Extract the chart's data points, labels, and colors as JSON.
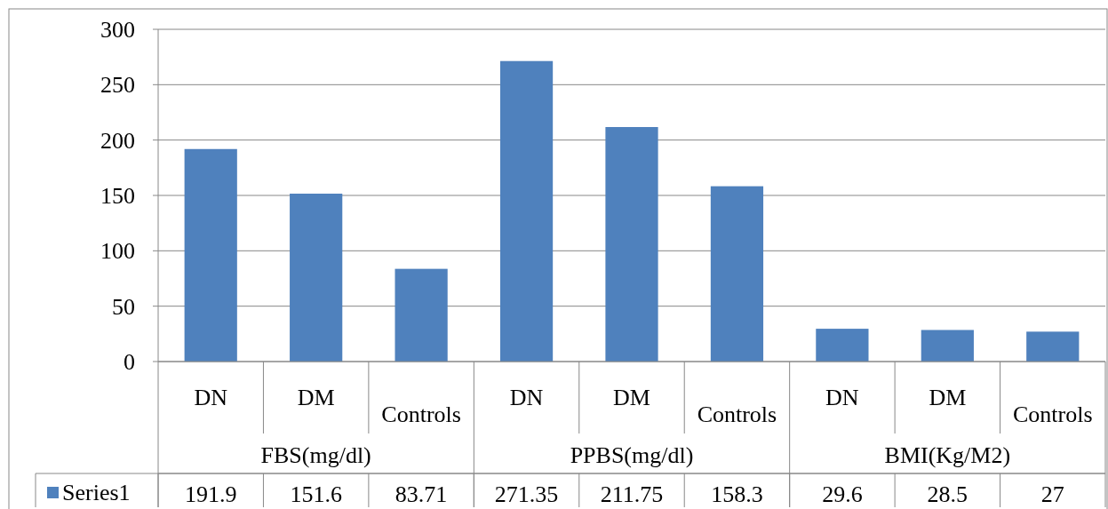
{
  "chart_data": {
    "type": "bar",
    "categories": [
      "DN",
      "DM",
      "Controls",
      "DN",
      "DM",
      "Controls",
      "DN",
      "DM",
      "Controls"
    ],
    "annotations": [
      "FBS(mg/dl)",
      "PPBS(mg/dl)",
      "BMI(Kg/M2)"
    ],
    "series": [
      {
        "name": "Series1",
        "color": "#4f81bd",
        "values": [
          191.9,
          151.6,
          83.71,
          271.35,
          211.75,
          158.3,
          29.6,
          28.5,
          27
        ]
      }
    ],
    "ylim": [
      0,
      300
    ],
    "yticks": [
      0,
      50,
      100,
      150,
      200,
      250,
      300
    ],
    "grid": "y",
    "data_labels": true
  }
}
